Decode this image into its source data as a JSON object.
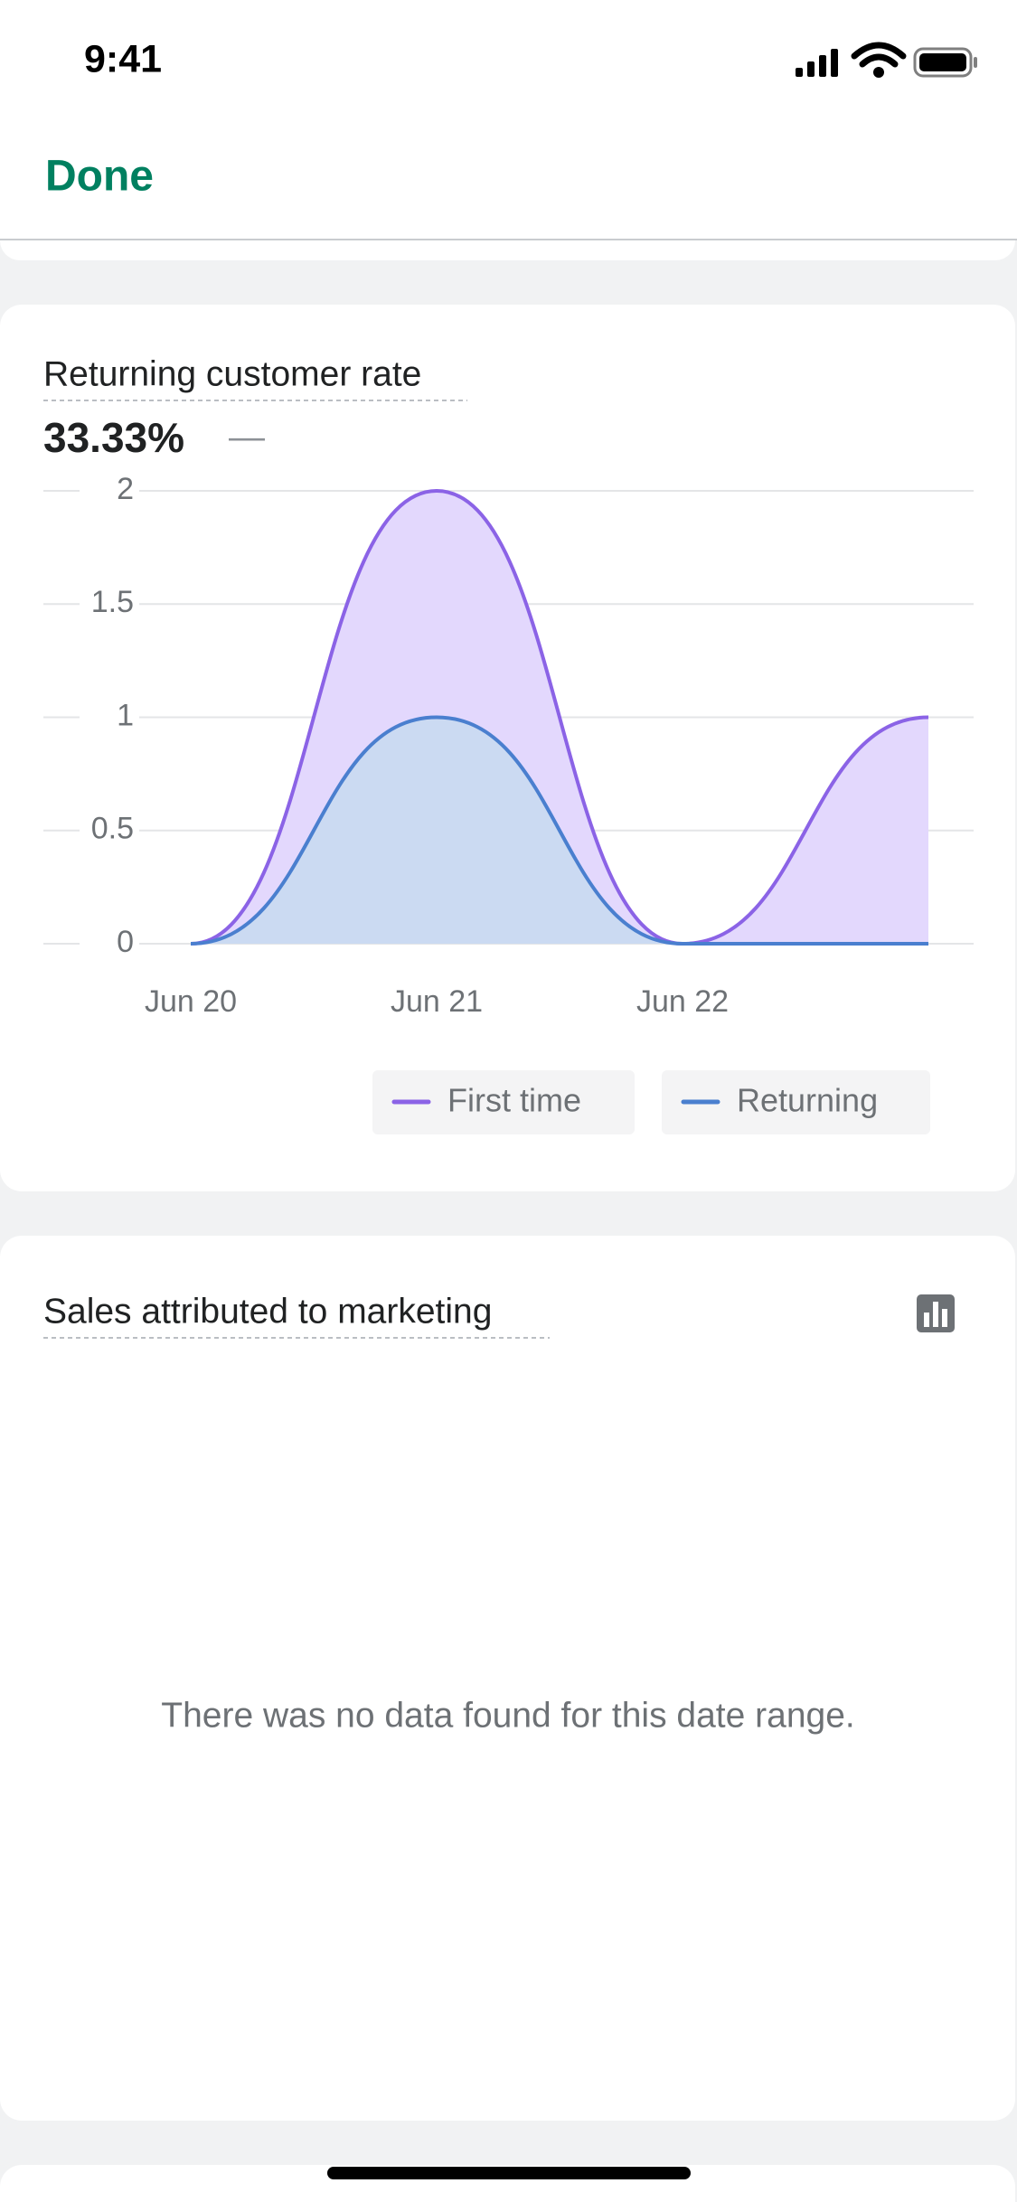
{
  "status_bar": {
    "time": "9:41"
  },
  "nav": {
    "done": "Done"
  },
  "metric_change": "—",
  "chart_data": {
    "type": "area",
    "stacked": true,
    "title": "Returning customer rate",
    "subtitle": "33.33%",
    "categories": [
      "Jun 20",
      "Jun 21",
      "Jun 22",
      null
    ],
    "series": [
      {
        "name": "First time",
        "color": "#8b63e6",
        "fill": "#e3d8fd",
        "values": [
          0,
          1,
          0,
          1
        ]
      },
      {
        "name": "Returning",
        "color": "#4a7fcf",
        "fill": "#c7dbf0",
        "values": [
          0,
          1,
          0,
          0
        ]
      }
    ],
    "ylim": [
      0,
      2
    ],
    "yticks": [
      0,
      0.5,
      1,
      1.5,
      2
    ],
    "grid": true
  },
  "marketing_card": {
    "title": "Sales attributed to marketing",
    "empty_message": "There was no data found for this date range."
  }
}
